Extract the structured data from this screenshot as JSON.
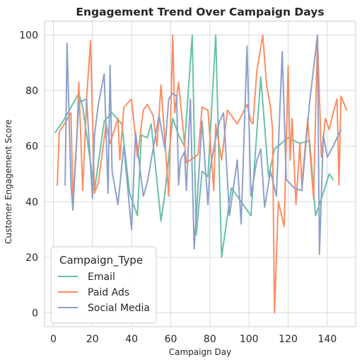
{
  "chart_data": {
    "type": "line",
    "title": "Engagement Trend Over Campaign Days",
    "xlabel": "Campaign Day",
    "ylabel": "Customer Engagement Score",
    "xlim": [
      -4.5,
      154.5
    ],
    "ylim": [
      -5,
      105
    ],
    "xticks": [
      0,
      20,
      40,
      60,
      80,
      100,
      120,
      140
    ],
    "yticks": [
      0,
      20,
      40,
      60,
      80,
      100
    ],
    "grid": true,
    "legend": {
      "title": "Campaign_Type",
      "placement": "lower-left"
    },
    "series": [
      {
        "name": "Email",
        "color": "#66c2a5",
        "x": [
          1,
          5,
          13,
          15,
          21,
          26,
          30,
          35,
          39,
          43,
          45,
          48,
          50,
          55,
          57,
          61,
          64,
          67,
          71,
          73,
          76,
          79,
          83,
          86,
          91,
          96,
          101,
          106,
          110,
          113,
          120,
          126,
          131,
          134,
          137,
          141,
          143
        ],
        "y": [
          65,
          69,
          79,
          74,
          44,
          69,
          72,
          68,
          43,
          35,
          64,
          63,
          68,
          33,
          43,
          70,
          64,
          60,
          100,
          28,
          51,
          49,
          100,
          20,
          45,
          40,
          35,
          85,
          49,
          59,
          63,
          61,
          62,
          35,
          41,
          50,
          48
        ]
      },
      {
        "name": "Paid Ads",
        "color": "#fc8d62",
        "x": [
          2,
          3,
          9,
          10,
          12,
          13,
          15,
          17,
          19,
          21,
          23,
          27,
          29,
          33,
          34,
          36,
          40,
          43,
          46,
          48,
          51,
          53,
          55,
          59,
          61,
          62,
          64,
          68,
          74,
          76,
          79,
          82,
          83,
          86,
          89,
          94,
          99,
          101,
          102,
          104,
          107,
          109,
          111,
          112,
          113,
          115,
          118,
          120,
          121,
          122,
          124,
          126,
          127,
          130,
          131,
          133,
          135,
          137,
          139,
          141,
          143,
          145,
          146,
          147,
          150
        ],
        "y": [
          46,
          65,
          72,
          41,
          63,
          83,
          44,
          77,
          98,
          43,
          47,
          68,
          61,
          70,
          55,
          74,
          77,
          56,
          73,
          75,
          71,
          60,
          82,
          42,
          100,
          72,
          83,
          54,
          57,
          74,
          73,
          44,
          68,
          55,
          73,
          68,
          75,
          69,
          68,
          87,
          100,
          82,
          74,
          66,
          0,
          40,
          31,
          89,
          55,
          70,
          39,
          61,
          46,
          70,
          59,
          41,
          99,
          56,
          70,
          66,
          72,
          77,
          46,
          78,
          73
        ]
      },
      {
        "name": "Social Media",
        "color": "#8da0cb",
        "x": [
          6,
          7,
          9,
          10,
          13,
          14,
          17,
          20,
          21,
          23,
          26,
          28,
          29,
          30,
          33,
          36,
          40,
          42,
          46,
          48,
          54,
          57,
          59,
          61,
          63,
          64,
          65,
          67,
          68,
          70,
          72,
          76,
          79,
          80,
          83,
          85,
          87,
          90,
          94,
          96,
          99,
          101,
          104,
          106,
          108,
          111,
          114,
          117,
          119,
          123,
          127,
          131,
          135,
          136,
          138,
          140,
          143,
          147
        ],
        "y": [
          46,
          97,
          46,
          37,
          76,
          76,
          77,
          41,
          64,
          75,
          86,
          43,
          89,
          51,
          39,
          60,
          30,
          65,
          42,
          47,
          71,
          59,
          77,
          79,
          78,
          46,
          55,
          58,
          44,
          77,
          23,
          69,
          39,
          51,
          63,
          69,
          72,
          35,
          55,
          32,
          96,
          42,
          55,
          59,
          38,
          51,
          42,
          94,
          48,
          45,
          44,
          76,
          100,
          21,
          64,
          56,
          60,
          66
        ]
      }
    ]
  }
}
